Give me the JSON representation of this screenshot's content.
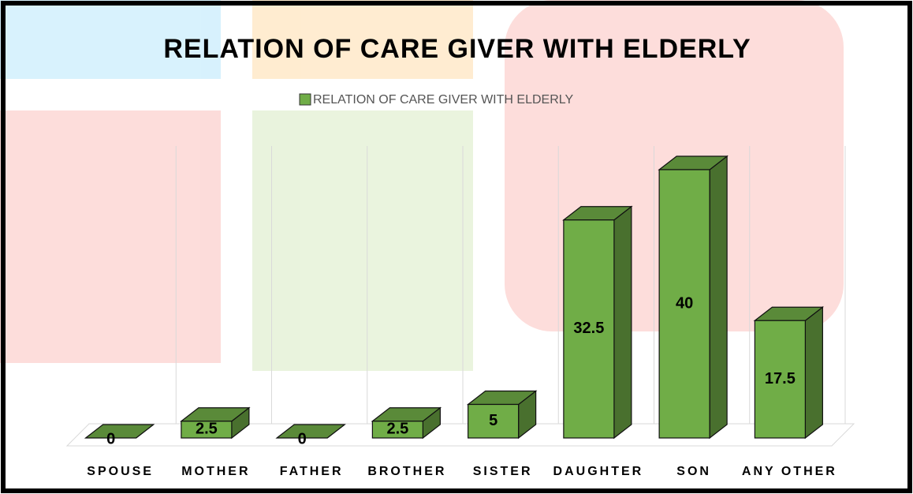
{
  "chart_data": {
    "type": "bar3d",
    "title": "RELATION OF CARE GIVER WITH ELDERLY",
    "categories": [
      "SPOUSE",
      "MOTHER",
      "FATHER",
      "BROTHER",
      "SISTER",
      "DAUGHTER",
      "SON",
      "ANY OTHER"
    ],
    "series": [
      {
        "name": "RELATION OF CARE GIVER WITH ELDERLY",
        "color": "#70ad47",
        "values": [
          0,
          2.5,
          0,
          2.5,
          5,
          32.5,
          40,
          17.5
        ]
      }
    ],
    "grid": true
  }
}
